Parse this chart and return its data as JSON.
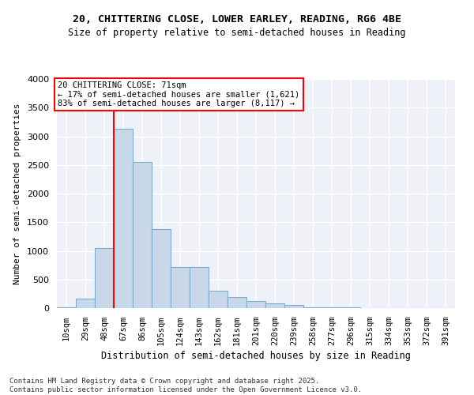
{
  "title_line1": "20, CHITTERING CLOSE, LOWER EARLEY, READING, RG6 4BE",
  "title_line2": "Size of property relative to semi-detached houses in Reading",
  "xlabel": "Distribution of semi-detached houses by size in Reading",
  "ylabel": "Number of semi-detached properties",
  "categories": [
    "10sqm",
    "29sqm",
    "48sqm",
    "67sqm",
    "86sqm",
    "105sqm",
    "124sqm",
    "143sqm",
    "162sqm",
    "181sqm",
    "201sqm",
    "220sqm",
    "239sqm",
    "258sqm",
    "277sqm",
    "296sqm",
    "315sqm",
    "334sqm",
    "353sqm",
    "372sqm",
    "391sqm"
  ],
  "values": [
    20,
    170,
    1050,
    3130,
    2550,
    1380,
    720,
    720,
    310,
    200,
    130,
    80,
    60,
    20,
    20,
    10,
    5,
    2,
    2,
    2,
    1
  ],
  "bar_color": "#c8d8e8",
  "bar_edge_color": "#7aabcc",
  "vline_color": "red",
  "vline_x_index": 3,
  "annotation_text_line1": "20 CHITTERING CLOSE: 71sqm",
  "annotation_text_line2": "← 17% of semi-detached houses are smaller (1,621)",
  "annotation_text_line3": "83% of semi-detached houses are larger (8,117) →",
  "ylim": [
    0,
    4000
  ],
  "yticks": [
    0,
    500,
    1000,
    1500,
    2000,
    2500,
    3000,
    3500,
    4000
  ],
  "background_color": "#eef2f8",
  "grid_color": "#ffffff",
  "footnote_line1": "Contains HM Land Registry data © Crown copyright and database right 2025.",
  "footnote_line2": "Contains public sector information licensed under the Open Government Licence v3.0."
}
